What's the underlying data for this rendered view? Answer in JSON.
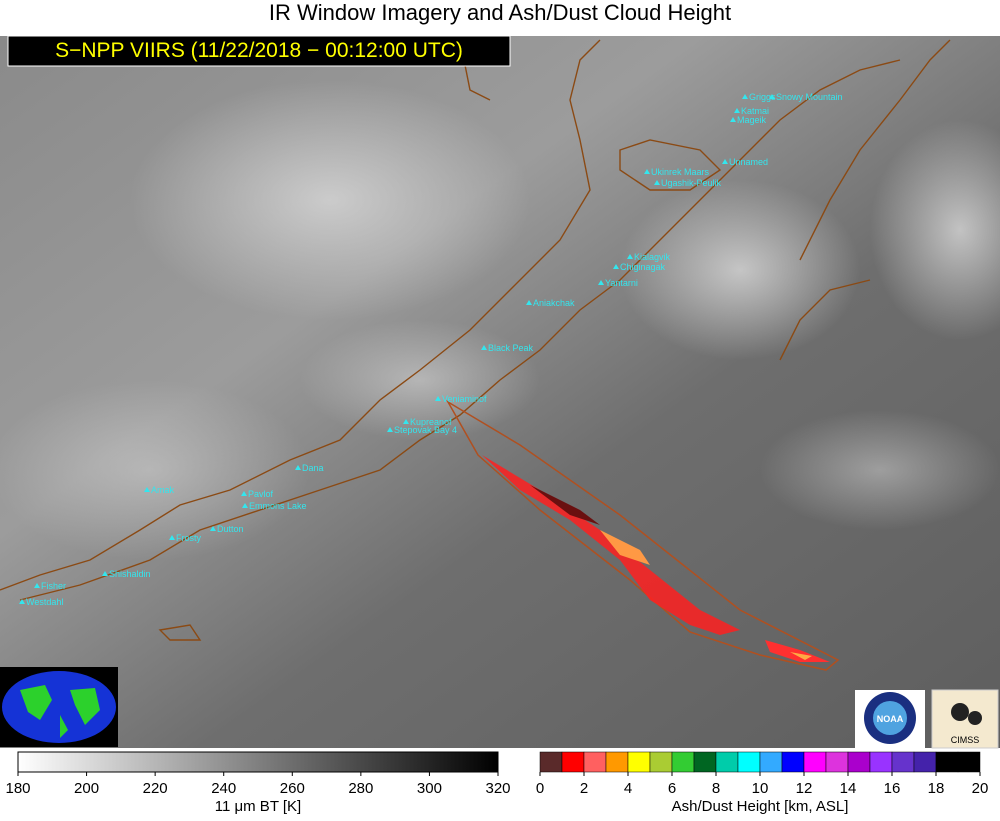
{
  "header": {
    "title": "IR Window Imagery and Ash/Dust Cloud Height",
    "subtitle": "S−NPP VIIRS (11/22/2018 − 00:12:00 UTC)"
  },
  "volcanoes": [
    "Griggs",
    "Snowy Mountain",
    "Katmai",
    "Mageik",
    "Unnamed",
    "Ukinrek Maars",
    "Ugashik-Peulik",
    "Kialagvik",
    "Chiginagak",
    "Yantarni",
    "Aniakchak",
    "Black Peak",
    "Veniaminof",
    "Kupreanof",
    "Stepovak Bay 4",
    "Dana",
    "Amak",
    "Pavlof",
    "Emmons Lake",
    "Dutton",
    "Frosty",
    "Shishaldin",
    "Fisher",
    "Westdahl"
  ],
  "colorbars": [
    {
      "label": "11 μm BT [K]",
      "lim": [
        180,
        320
      ],
      "ticks": [
        180,
        200,
        220,
        240,
        260,
        280,
        300,
        320
      ]
    },
    {
      "label": "Ash/Dust Height [km, ASL]",
      "lim": [
        0,
        20
      ],
      "ticks": [
        0,
        2,
        4,
        6,
        8,
        10,
        12,
        14,
        16,
        18,
        20
      ],
      "colors": [
        "#5a2a2a",
        "#ff0000",
        "#ff6060",
        "#ff9900",
        "#ffff00",
        "#aacc33",
        "#33cc33",
        "#006622",
        "#00ccaa",
        "#00ffff",
        "#33aaff",
        "#0000ff",
        "#ff00ff",
        "#dd33dd",
        "#aa00cc",
        "#9933ff",
        "#6633cc",
        "#4422aa",
        "#000000",
        "#000000"
      ]
    }
  ],
  "logos": [
    "NOAA",
    "CIMSS"
  ]
}
